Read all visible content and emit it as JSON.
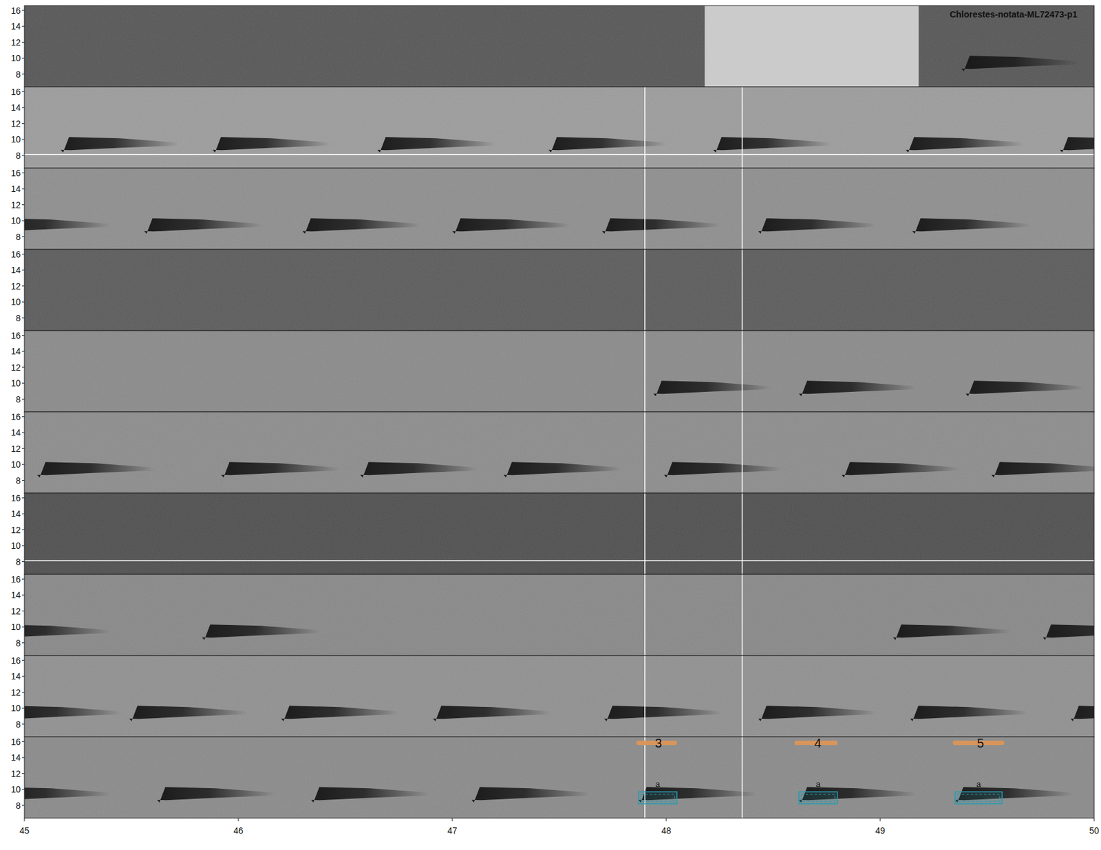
{
  "chart_data": {
    "type": "spectrogram",
    "title": "Chlorestes-notata-ML72473-p1",
    "xlim": [
      45,
      50
    ],
    "xticks": [
      45,
      46,
      47,
      48,
      49,
      50
    ],
    "ylim": [
      6.4,
      16.6
    ],
    "yticks": [
      8,
      10,
      12,
      14,
      16
    ],
    "call_freq": [
      8.6,
      10.3
    ],
    "call_color": "#151515",
    "cursor_x": [
      47.9,
      48.355
    ],
    "cursor_rows": [
      1,
      2,
      3,
      4,
      5,
      6,
      7,
      8,
      9
    ],
    "cursor_color": "#ffffff",
    "rows": [
      {
        "color": "#555555",
        "calls": [
          [
            49.38,
            49.93
          ]
        ],
        "blocks": [
          {
            "x": [
              48.18,
              49.18
            ],
            "color": "#cbcbcb"
          }
        ]
      },
      {
        "color": "#9c9c9c",
        "hline": 8.1,
        "calls": [
          [
            45.17,
            45.72
          ],
          [
            45.88,
            46.43
          ],
          [
            46.65,
            47.2
          ],
          [
            47.45,
            48.0
          ],
          [
            48.22,
            48.77
          ],
          [
            49.12,
            49.67
          ],
          [
            49.84,
            50.39
          ]
        ]
      },
      {
        "color": "#8e8e8e",
        "calls": [
          [
            44.85,
            45.4
          ],
          [
            45.56,
            46.11
          ],
          [
            46.3,
            46.85
          ],
          [
            47.0,
            47.55
          ],
          [
            47.7,
            48.25
          ],
          [
            48.43,
            48.98
          ],
          [
            49.15,
            49.7
          ]
        ]
      },
      {
        "color": "#5a5a5a",
        "calls": []
      },
      {
        "color": "#8a8a8a",
        "calls": [
          [
            47.94,
            48.49
          ],
          [
            48.62,
            49.17
          ],
          [
            49.4,
            49.95
          ]
        ]
      },
      {
        "color": "#8c8c8c",
        "calls": [
          [
            45.06,
            45.61
          ],
          [
            45.92,
            46.47
          ],
          [
            46.57,
            47.12
          ],
          [
            47.24,
            47.79
          ],
          [
            47.99,
            48.54
          ],
          [
            48.82,
            49.37
          ],
          [
            49.52,
            50.07
          ]
        ]
      },
      {
        "color": "#4e4e4e",
        "hline": 8.1,
        "calls": []
      },
      {
        "color": "#888888",
        "calls": [
          [
            44.85,
            45.4
          ],
          [
            45.83,
            46.38
          ],
          [
            49.06,
            49.61
          ],
          [
            49.76,
            50.31
          ]
        ]
      },
      {
        "color": "#909090",
        "calls": [
          [
            44.9,
            45.45
          ],
          [
            45.49,
            46.04
          ],
          [
            46.2,
            46.75
          ],
          [
            46.91,
            47.46
          ],
          [
            47.71,
            48.26
          ],
          [
            48.43,
            48.98
          ],
          [
            49.14,
            49.69
          ],
          [
            49.89,
            50.44
          ]
        ]
      },
      {
        "color": "#8a8a8a",
        "calls": [
          [
            44.85,
            45.4
          ],
          [
            45.62,
            46.17
          ],
          [
            46.34,
            46.89
          ],
          [
            47.09,
            47.64
          ],
          [
            47.87,
            48.42
          ],
          [
            48.62,
            49.17
          ],
          [
            49.35,
            49.9
          ]
        ],
        "segment_color": "#d9955a",
        "segments": [
          {
            "x": [
              47.86,
              48.05
            ],
            "label": "3"
          },
          {
            "x": [
              48.6,
              48.8
            ],
            "label": "4"
          },
          {
            "x": [
              49.34,
              49.58
            ],
            "label": "5"
          }
        ],
        "box_color": "#2a9bb0",
        "boxes": [
          {
            "x": [
              47.87,
              48.05
            ],
            "y": [
              8.2,
              9.7
            ],
            "label": "a"
          },
          {
            "x": [
              48.62,
              48.8
            ],
            "y": [
              8.2,
              9.7
            ],
            "label": "a"
          },
          {
            "x": [
              49.35,
              49.57
            ],
            "y": [
              8.2,
              9.7
            ],
            "label": "a"
          }
        ]
      }
    ]
  }
}
